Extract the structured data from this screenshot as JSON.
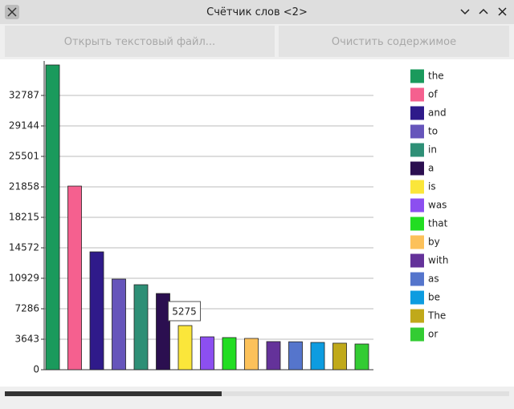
{
  "window": {
    "title": "Счётчик слов <2>"
  },
  "buttons": [
    "Открыть текстовый файл...",
    "Очистить содержимое"
  ],
  "chart_data": {
    "type": "bar",
    "categories": [
      "the",
      "of",
      "and",
      "to",
      "in",
      "a",
      "is",
      "was",
      "that",
      "by",
      "with",
      "as",
      "be",
      "The",
      "or"
    ],
    "values": [
      36430,
      21950,
      14090,
      10830,
      10160,
      9110,
      5275,
      3930,
      3840,
      3740,
      3360,
      3340,
      3260,
      3170,
      3070
    ],
    "colors": [
      "#1a9a5c",
      "#f5608f",
      "#2f1a8a",
      "#6655bb",
      "#2e8f76",
      "#2b0f50",
      "#fbe63a",
      "#8c4ff0",
      "#22dd22",
      "#fcc15a",
      "#64329a",
      "#5575cc",
      "#0d9ce0",
      "#c0a91a",
      "#33cc33"
    ],
    "ylim": [
      0,
      36430
    ],
    "yticks": [
      0,
      3643,
      7286,
      10929,
      14572,
      18215,
      21858,
      25501,
      29144,
      32787
    ],
    "grid": true,
    "legend": "right"
  }
}
